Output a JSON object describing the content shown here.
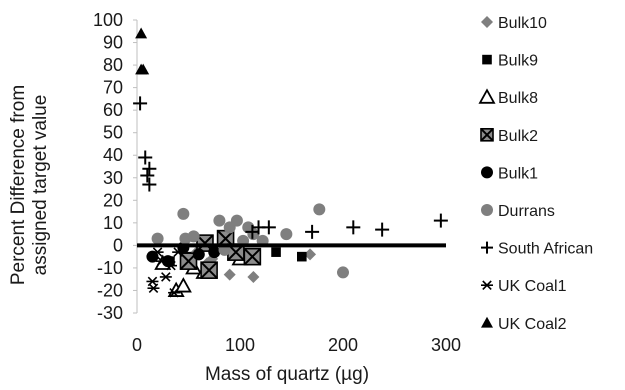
{
  "chart_data": {
    "type": "scatter",
    "xlabel": "Mass of quartz (µg)",
    "ylabel_line1": "Percent Difference from",
    "ylabel_line2": "assigned target value",
    "xlim": [
      0,
      300
    ],
    "ylim": [
      -30,
      100
    ],
    "xticks": [
      "0",
      "100",
      "200",
      "300"
    ],
    "yticks": [
      "100",
      "90",
      "80",
      "70",
      "60",
      "50",
      "40",
      "30",
      "20",
      "10",
      "0",
      "-10",
      "-20",
      "-30"
    ],
    "grid": false,
    "legend_position": "right",
    "reference_line_y": 0,
    "series": [
      {
        "name": "Bulk10",
        "marker": "diamond-filled",
        "color": "#7f7f7f",
        "points": [
          [
            58,
            -3
          ],
          [
            68,
            -8
          ],
          [
            73,
            -6
          ],
          [
            90,
            -13
          ],
          [
            113,
            -14
          ],
          [
            168,
            -4
          ]
        ]
      },
      {
        "name": "Bulk9",
        "marker": "square-filled",
        "color": "#000000",
        "points": [
          [
            32,
            -7
          ],
          [
            48,
            -5
          ],
          [
            88,
            -1
          ],
          [
            98,
            -2
          ],
          [
            135,
            -3
          ],
          [
            160,
            -5
          ]
        ]
      },
      {
        "name": "Bulk8",
        "marker": "triangle-open",
        "color": "#000000",
        "points": [
          [
            25,
            -8
          ],
          [
            38,
            -20
          ],
          [
            45,
            -18
          ],
          [
            55,
            -10
          ],
          [
            65,
            -12
          ],
          [
            100,
            -6
          ]
        ]
      },
      {
        "name": "Bulk2",
        "marker": "boxed-x",
        "color": "#000000",
        "points": [
          [
            50,
            -7
          ],
          [
            66,
            1
          ],
          [
            70,
            -11
          ],
          [
            86,
            3
          ],
          [
            96,
            -3
          ],
          [
            112,
            -5
          ]
        ]
      },
      {
        "name": "Bulk1",
        "marker": "circle-filled",
        "color": "#000000",
        "points": [
          [
            15,
            -5
          ],
          [
            30,
            -7
          ],
          [
            45,
            -1
          ],
          [
            60,
            -4
          ],
          [
            75,
            -3
          ]
        ]
      },
      {
        "name": "Durrans",
        "marker": "circle-filled",
        "color": "#7f7f7f",
        "points": [
          [
            20,
            3
          ],
          [
            45,
            14
          ],
          [
            47,
            3
          ],
          [
            55,
            4
          ],
          [
            80,
            11
          ],
          [
            85,
            -2
          ],
          [
            90,
            8
          ],
          [
            97,
            11
          ],
          [
            103,
            2
          ],
          [
            108,
            8
          ],
          [
            113,
            5
          ],
          [
            122,
            2
          ],
          [
            145,
            5
          ],
          [
            177,
            16
          ],
          [
            200,
            -12
          ]
        ]
      },
      {
        "name": "South African",
        "marker": "plus",
        "color": "#000000",
        "points": [
          [
            3,
            63
          ],
          [
            8,
            39
          ],
          [
            10,
            31
          ],
          [
            12,
            34
          ],
          [
            12,
            27
          ],
          [
            112,
            6
          ],
          [
            118,
            8
          ],
          [
            128,
            8
          ],
          [
            170,
            6
          ],
          [
            210,
            8
          ],
          [
            238,
            7
          ],
          [
            295,
            11
          ]
        ]
      },
      {
        "name": "UK Coal1",
        "marker": "asterisk",
        "color": "#000000",
        "points": [
          [
            15,
            -16
          ],
          [
            16,
            -19
          ],
          [
            20,
            -3
          ],
          [
            24,
            -7
          ],
          [
            28,
            -14
          ],
          [
            33,
            -9
          ],
          [
            36,
            -21
          ],
          [
            40,
            -3
          ]
        ]
      },
      {
        "name": "UK Coal2",
        "marker": "triangle-filled",
        "color": "#000000",
        "points": [
          [
            4,
            94
          ],
          [
            4,
            78
          ],
          [
            6,
            78
          ]
        ]
      }
    ]
  }
}
